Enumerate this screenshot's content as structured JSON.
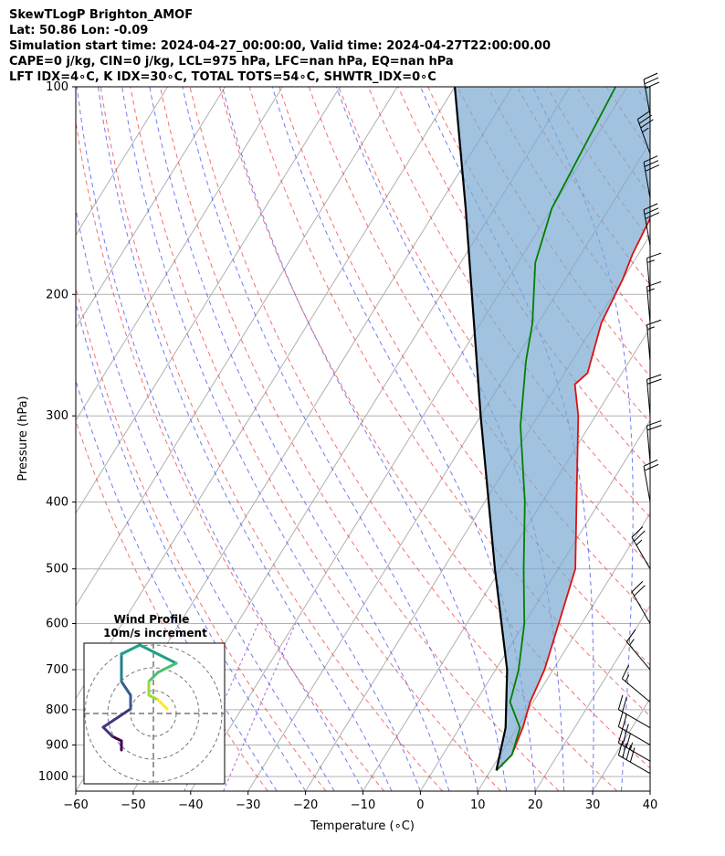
{
  "header": {
    "line1": "SkewTLogP Brighton_AMOF",
    "line2": "Lat: 50.86   Lon: -0.09",
    "line3": "Simulation start time: 2024-04-27_00:00:00, Valid time: 2024-04-27T22:00:00.00",
    "line4": "CAPE=0 j/kg, CIN=0 j/kg, LCL=975 hPa, LFC=nan hPa, EQ=nan hPa",
    "line5": "LFT IDX=4∘C, K IDX=30∘C, TOTAL TOTS=54∘C, SHWTR_IDX=0∘C"
  },
  "chart_data": {
    "type": "line",
    "xlabel": "Temperature (∘C)",
    "ylabel": "Pressure (hPa)",
    "xlim": [
      -60,
      40
    ],
    "ylim": [
      1050,
      100
    ],
    "log_y": true,
    "xticks": [
      "−60",
      "−50",
      "−40",
      "−30",
      "−20",
      "−10",
      "0",
      "10",
      "20",
      "30",
      "40"
    ],
    "yticks": [
      "100",
      "200",
      "300",
      "400",
      "500",
      "600",
      "700",
      "800",
      "900",
      "1000"
    ],
    "grid": true,
    "series": [
      {
        "name": "",
        "color": "#dd1111",
        "points": [
          [
            11,
            980
          ],
          [
            12,
            930
          ],
          [
            11,
            850
          ],
          [
            9.5,
            780
          ],
          [
            8.5,
            700
          ],
          [
            6,
            600
          ],
          [
            3,
            500
          ],
          [
            -4,
            400
          ],
          [
            -13,
            300
          ],
          [
            -17,
            270
          ],
          [
            -16,
            260
          ],
          [
            -19,
            220
          ],
          [
            -20,
            190
          ],
          [
            -21,
            175
          ],
          [
            -22,
            150
          ],
          [
            -23,
            130
          ],
          [
            -26,
            110
          ],
          [
            -28,
            100
          ]
        ]
      },
      {
        "name": "",
        "color": "#008000",
        "points": [
          [
            11,
            980
          ],
          [
            12,
            930
          ],
          [
            10.5,
            850
          ],
          [
            6,
            780
          ],
          [
            4,
            700
          ],
          [
            0,
            600
          ],
          [
            -6,
            500
          ],
          [
            -13,
            400
          ],
          [
            -22,
            310
          ],
          [
            -28,
            250
          ],
          [
            -31,
            220
          ],
          [
            -37,
            180
          ],
          [
            -40,
            150
          ],
          [
            -42,
            100
          ]
        ]
      },
      {
        "name": "",
        "color": "#000000",
        "points": [
          [
            11,
            980
          ],
          [
            8,
            850
          ],
          [
            2,
            700
          ],
          [
            -11,
            500
          ],
          [
            -30,
            300
          ],
          [
            -55,
            150
          ],
          [
            -70,
            100
          ]
        ]
      }
    ],
    "wind_barbs": [
      {
        "p": 990,
        "s": 40,
        "d": 300
      },
      {
        "p": 950,
        "s": 35,
        "d": 300
      },
      {
        "p": 900,
        "s": 25,
        "d": 300
      },
      {
        "p": 850,
        "s": 20,
        "d": 300
      },
      {
        "p": 780,
        "s": 15,
        "d": 310
      },
      {
        "p": 700,
        "s": 15,
        "d": 320
      },
      {
        "p": 600,
        "s": 20,
        "d": 330
      },
      {
        "p": 500,
        "s": 25,
        "d": 330
      },
      {
        "p": 400,
        "s": 20,
        "d": 350
      },
      {
        "p": 350,
        "s": 20,
        "d": 355
      },
      {
        "p": 300,
        "s": 20,
        "d": 355
      },
      {
        "p": 250,
        "s": 15,
        "d": 355
      },
      {
        "p": 220,
        "s": 15,
        "d": 355
      },
      {
        "p": 200,
        "s": 15,
        "d": 355
      },
      {
        "p": 170,
        "s": 30,
        "d": 350
      },
      {
        "p": 145,
        "s": 30,
        "d": 350
      },
      {
        "p": 125,
        "s": 35,
        "d": 340
      },
      {
        "p": 110,
        "s": 30,
        "d": 350
      }
    ],
    "inset": {
      "title": "Wind Profile",
      "subtitle": "10m/s increment",
      "hodograph": [
        [
          -2,
          -8
        ],
        [
          -2,
          -6
        ],
        [
          -3,
          -5
        ],
        [
          -4,
          -3
        ],
        [
          -1,
          1
        ],
        [
          -1,
          4
        ],
        [
          -2,
          7
        ],
        [
          -2,
          13
        ],
        [
          0,
          15
        ],
        [
          4,
          11
        ],
        [
          2,
          9
        ],
        [
          1,
          7
        ],
        [
          1,
          4
        ],
        [
          2,
          3
        ],
        [
          3,
          1
        ]
      ]
    }
  }
}
